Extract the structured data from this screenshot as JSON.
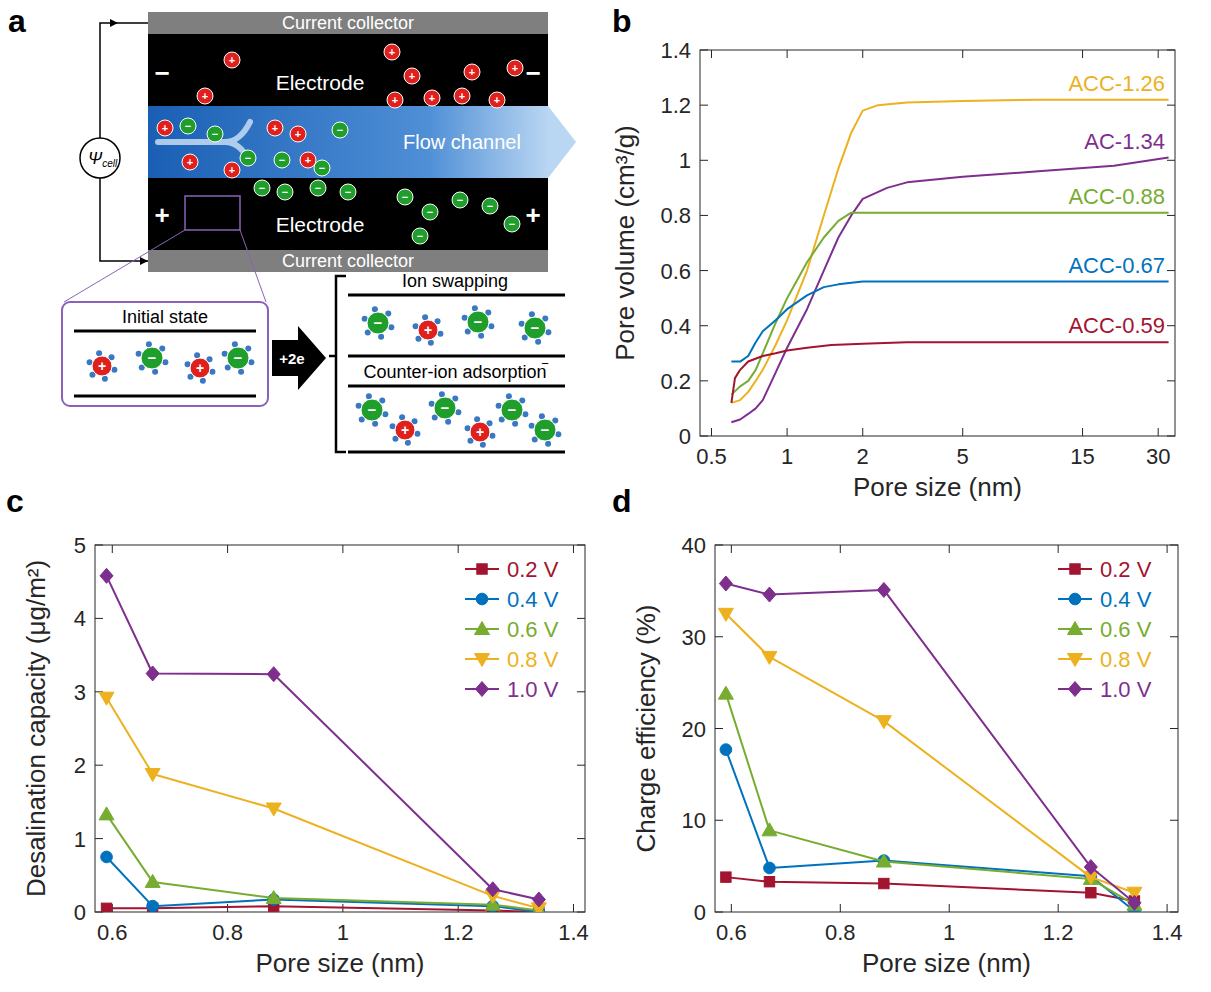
{
  "diagram": {
    "panel_label": "a",
    "current_collector_top": "Current collector",
    "current_collector_bottom": "Current collector",
    "electrode_top": "Electrode",
    "electrode_bottom": "Electrode",
    "flow_channel": "Flow channel",
    "cell_potential": {
      "symbol": "Ψ",
      "subscript": "cell"
    },
    "negative_sign": "−",
    "positive_sign": "+",
    "initial_state": "Initial state",
    "charge": "+2e",
    "ion_swapping": "Ion swapping",
    "counter_ion_adsorption": "Counter-ion adsorption"
  },
  "chart_data": [
    {
      "type": "line",
      "panel_label": "b",
      "x_label": "Pore size (nm)",
      "y_label": "Pore volume (cm³/g)",
      "log": "x",
      "xlim": [
        0.45,
        35
      ],
      "xticks": [
        0.5,
        1,
        2,
        5,
        15,
        30
      ],
      "ylim": [
        0,
        1.4
      ],
      "yticks": [
        0,
        0.2,
        0.4,
        0.6,
        0.8,
        1,
        1.2,
        1.4
      ],
      "grid": false,
      "series": [
        {
          "name": "ACC-1.26",
          "color": "#EDB120",
          "x": [
            0.6,
            0.65,
            0.7,
            0.75,
            0.8,
            0.9,
            1,
            1.2,
            1.4,
            1.6,
            1.8,
            2,
            2.3,
            3,
            5,
            10,
            20,
            33
          ],
          "values": [
            0.12,
            0.13,
            0.16,
            0.2,
            0.24,
            0.33,
            0.42,
            0.6,
            0.8,
            0.97,
            1.1,
            1.18,
            1.2,
            1.21,
            1.215,
            1.22,
            1.22,
            1.22
          ]
        },
        {
          "name": "AC-1.34",
          "color": "#7E2F8E",
          "x": [
            0.6,
            0.65,
            0.7,
            0.75,
            0.8,
            0.9,
            1,
            1.2,
            1.4,
            1.6,
            1.8,
            2,
            2.5,
            3,
            5,
            10,
            20,
            33
          ],
          "values": [
            0.05,
            0.06,
            0.08,
            0.1,
            0.13,
            0.23,
            0.32,
            0.46,
            0.6,
            0.72,
            0.8,
            0.86,
            0.9,
            0.92,
            0.94,
            0.96,
            0.98,
            1.01
          ]
        },
        {
          "name": "ACC-0.88",
          "color": "#77AC30",
          "x": [
            0.6,
            0.65,
            0.7,
            0.75,
            0.8,
            0.9,
            1,
            1.2,
            1.4,
            1.6,
            1.8,
            2,
            3,
            10,
            33
          ],
          "values": [
            0.15,
            0.18,
            0.2,
            0.24,
            0.3,
            0.41,
            0.5,
            0.63,
            0.72,
            0.78,
            0.81,
            0.81,
            0.81,
            0.81,
            0.81
          ]
        },
        {
          "name": "ACC-0.67",
          "color": "#0072BD",
          "x": [
            0.6,
            0.65,
            0.7,
            0.75,
            0.8,
            0.9,
            1,
            1.2,
            1.4,
            1.6,
            2,
            3,
            10,
            33
          ],
          "values": [
            0.27,
            0.27,
            0.29,
            0.34,
            0.38,
            0.42,
            0.46,
            0.51,
            0.54,
            0.55,
            0.56,
            0.56,
            0.56,
            0.56
          ]
        },
        {
          "name": "ACC-0.59",
          "color": "#A2142F",
          "x": [
            0.6,
            0.62,
            0.65,
            0.7,
            0.8,
            0.9,
            1,
            1.2,
            1.5,
            2,
            3,
            10,
            33
          ],
          "values": [
            0.12,
            0.21,
            0.24,
            0.27,
            0.29,
            0.3,
            0.31,
            0.32,
            0.33,
            0.335,
            0.34,
            0.34,
            0.34
          ]
        }
      ]
    },
    {
      "type": "line",
      "panel_label": "c",
      "x_label": "Pore size (nm)",
      "y_label": "Desalination capacity (μg/m²)",
      "xlim": [
        0.57,
        1.42
      ],
      "xticks": [
        0.6,
        0.8,
        1,
        1.2,
        1.4
      ],
      "ylim": [
        0,
        5
      ],
      "yticks": [
        0,
        1,
        2,
        3,
        4,
        5
      ],
      "grid": false,
      "legend": "upper right",
      "x": [
        0.59,
        0.67,
        0.88,
        1.26,
        1.34
      ],
      "series": [
        {
          "name": "0.2 V",
          "color": "#A2142F",
          "marker": "square",
          "values": [
            0.05,
            0.05,
            0.08,
            0.02,
            0.0
          ]
        },
        {
          "name": "0.4 V",
          "color": "#0072BD",
          "marker": "circle",
          "values": [
            0.75,
            0.08,
            0.17,
            0.08,
            0.0
          ]
        },
        {
          "name": "0.6 V",
          "color": "#77AC30",
          "marker": "triangle-up",
          "values": [
            1.33,
            0.41,
            0.19,
            0.1,
            0.02
          ]
        },
        {
          "name": "0.8 V",
          "color": "#EDB120",
          "marker": "triangle-down",
          "values": [
            2.92,
            1.88,
            1.41,
            0.22,
            0.05
          ]
        },
        {
          "name": "1.0 V",
          "color": "#7E2F8E",
          "marker": "diamond",
          "values": [
            4.58,
            3.25,
            3.24,
            0.31,
            0.17
          ]
        }
      ]
    },
    {
      "type": "line",
      "panel_label": "d",
      "x_label": "Pore size (nm)",
      "y_label": "Charge efficiency (%)",
      "xlim": [
        0.57,
        1.42
      ],
      "xticks": [
        0.6,
        0.8,
        1,
        1.2,
        1.4
      ],
      "ylim": [
        0,
        40
      ],
      "yticks": [
        0,
        10,
        20,
        30,
        40
      ],
      "grid": false,
      "legend": "upper right",
      "x": [
        0.59,
        0.67,
        0.88,
        1.26,
        1.34
      ],
      "series": [
        {
          "name": "0.2 V",
          "color": "#A2142F",
          "marker": "square",
          "values": [
            3.8,
            3.3,
            3.1,
            2.1,
            1.2
          ]
        },
        {
          "name": "0.4 V",
          "color": "#0072BD",
          "marker": "circle",
          "values": [
            17.7,
            4.8,
            5.6,
            3.9,
            0.1
          ]
        },
        {
          "name": "0.6 V",
          "color": "#77AC30",
          "marker": "triangle-up",
          "values": [
            23.8,
            8.9,
            5.5,
            3.6,
            0.8
          ]
        },
        {
          "name": "0.8 V",
          "color": "#EDB120",
          "marker": "triangle-down",
          "values": [
            32.5,
            27.8,
            20.8,
            3.8,
            2.1
          ]
        },
        {
          "name": "1.0 V",
          "color": "#7E2F8E",
          "marker": "diamond",
          "values": [
            35.8,
            34.6,
            35.1,
            4.9,
            1.0
          ]
        }
      ]
    }
  ]
}
